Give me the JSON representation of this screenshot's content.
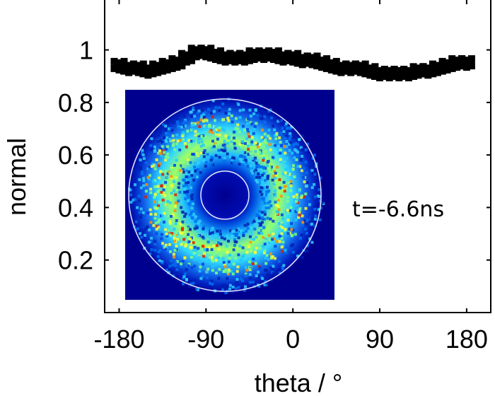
{
  "chart_data": {
    "type": "scatter",
    "xlabel": "theta  / °",
    "ylabel": "normal",
    "xlim": [
      -195,
      205
    ],
    "ylim": [
      0,
      1.19
    ],
    "xticks": [
      -180,
      -90,
      0,
      90,
      180
    ],
    "xtick_labels": [
      "-180",
      "-90",
      "0",
      "90",
      "180"
    ],
    "yticks": [
      0.2,
      0.4,
      0.6,
      0.8,
      1
    ],
    "ytick_labels": [
      "0.2",
      "0.4",
      "0.6",
      "0.8",
      "1"
    ],
    "grid": false,
    "marker": "square",
    "color": "#000000",
    "annotation": "t=-6.6ns",
    "series": [
      {
        "x": [
          -180,
          -170,
          -160,
          -150,
          -140,
          -130,
          -120,
          -110,
          -100,
          -90,
          -80,
          -70,
          -60,
          -50,
          -40,
          -30,
          -20,
          -10,
          0,
          10,
          20,
          30,
          40,
          50,
          60,
          70,
          80,
          90,
          100,
          110,
          120,
          130,
          140,
          150,
          160,
          170,
          180
        ],
        "y": [
          0.94,
          0.93,
          0.93,
          0.92,
          0.93,
          0.94,
          0.95,
          0.97,
          0.99,
          0.99,
          0.98,
          0.97,
          0.97,
          0.97,
          0.98,
          0.98,
          0.98,
          0.97,
          0.97,
          0.96,
          0.96,
          0.95,
          0.94,
          0.93,
          0.93,
          0.93,
          0.92,
          0.91,
          0.91,
          0.91,
          0.91,
          0.92,
          0.92,
          0.93,
          0.94,
          0.95,
          0.95
        ]
      }
    ]
  },
  "inset": {
    "colormap": "jet",
    "background_color": "#00008f",
    "ring_line_color": "#e8e8ff"
  }
}
